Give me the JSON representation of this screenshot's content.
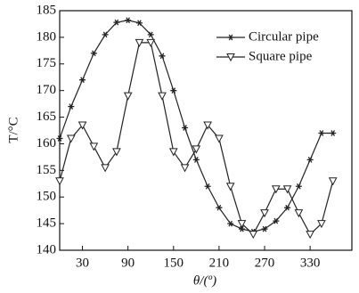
{
  "chart_data": {
    "type": "line",
    "xlabel": "θ/(º)",
    "ylabel": "T/°C",
    "x": [
      0,
      15,
      30,
      45,
      60,
      75,
      90,
      105,
      120,
      135,
      150,
      165,
      180,
      195,
      210,
      225,
      240,
      255,
      270,
      285,
      300,
      315,
      330,
      345,
      360
    ],
    "series": [
      {
        "name": "Circular pipe",
        "color": "#222222",
        "marker": "star",
        "values": [
          161,
          167,
          172,
          177,
          180.5,
          182.8,
          183.2,
          182.7,
          180.5,
          176.5,
          170,
          163,
          157,
          152,
          148,
          145,
          144,
          143.5,
          144,
          145.5,
          148,
          152,
          157,
          162,
          162
        ]
      },
      {
        "name": "Square pipe",
        "color": "#222222",
        "marker": "triangle-down",
        "values": [
          153,
          161,
          163.5,
          159.5,
          155.5,
          158.5,
          169,
          179,
          179,
          169,
          158.5,
          155.5,
          159,
          163.5,
          161,
          152,
          145,
          143,
          147,
          151.5,
          151.5,
          147,
          143,
          145,
          153
        ]
      }
    ],
    "xlim": [
      0,
      385
    ],
    "xticks": [
      30,
      90,
      150,
      210,
      270,
      330
    ],
    "ylim": [
      140,
      185
    ],
    "yticks": [
      140,
      145,
      150,
      155,
      160,
      165,
      170,
      175,
      180,
      185
    ],
    "legend": "upper right",
    "grid": false
  }
}
